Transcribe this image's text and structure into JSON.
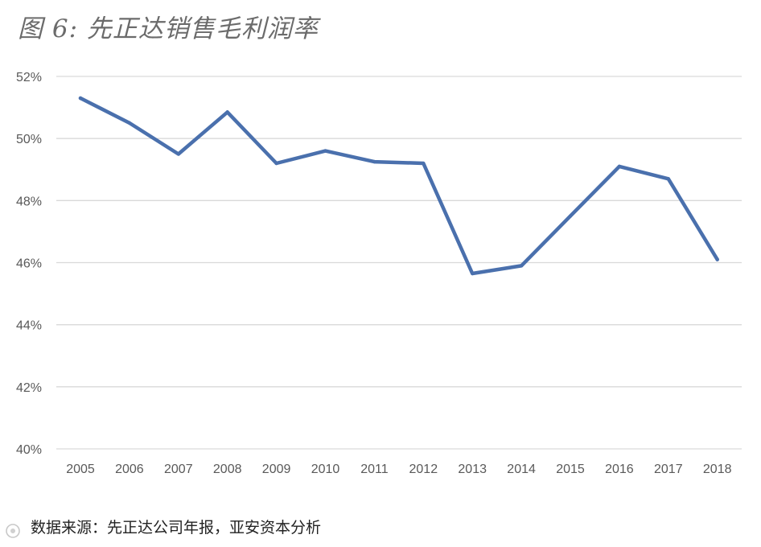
{
  "title": "图 6: 先正达销售毛利润率",
  "source": "数据来源：先正达公司年报，亚安资本分析",
  "chart_data": {
    "type": "line",
    "title": "图 6: 先正达销售毛利润率",
    "xlabel": "",
    "ylabel": "",
    "categories": [
      "2005",
      "2006",
      "2007",
      "2008",
      "2009",
      "2010",
      "2011",
      "2012",
      "2013",
      "2014",
      "2015",
      "2016",
      "2017",
      "2018"
    ],
    "series": [
      {
        "values": [
          51.3,
          50.5,
          49.5,
          50.85,
          49.2,
          49.6,
          49.25,
          49.2,
          45.65,
          45.9,
          47.5,
          49.1,
          48.7,
          46.1
        ]
      }
    ],
    "ylim": [
      40,
      52
    ],
    "yticks": [
      40,
      42,
      44,
      46,
      48,
      50,
      52
    ],
    "ytick_labels": [
      "40%",
      "42%",
      "44%",
      "46%",
      "48%",
      "50%",
      "52%"
    ],
    "grid": true,
    "color": "#4a70ad"
  }
}
